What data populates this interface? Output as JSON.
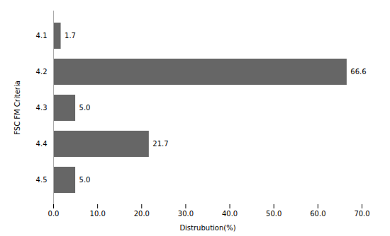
{
  "chart_data": {
    "type": "bar",
    "orientation": "horizontal",
    "categories": [
      "4.1",
      "4.2",
      "4.3",
      "4.4",
      "4.5"
    ],
    "values": [
      1.7,
      66.6,
      5.0,
      21.7,
      5.0
    ],
    "value_labels": [
      "1.7",
      "66.6",
      "5.0",
      "21.7",
      "5.0"
    ],
    "data_labels": true,
    "color": "#666666",
    "xlabel": "Distrubution(%)",
    "ylabel": "FSC FM Criteria",
    "xlim": [
      0,
      70
    ],
    "xticks": [
      {
        "value": 0,
        "label": "0.0"
      },
      {
        "value": 10,
        "label": "10.0"
      },
      {
        "value": 20,
        "label": "20.0"
      },
      {
        "value": 30,
        "label": "30.0"
      },
      {
        "value": 40,
        "label": "40.0"
      },
      {
        "value": 50,
        "label": "50.0"
      },
      {
        "value": 60,
        "label": "60.0"
      },
      {
        "value": 70,
        "label": "70.0"
      }
    ],
    "grid": false
  }
}
